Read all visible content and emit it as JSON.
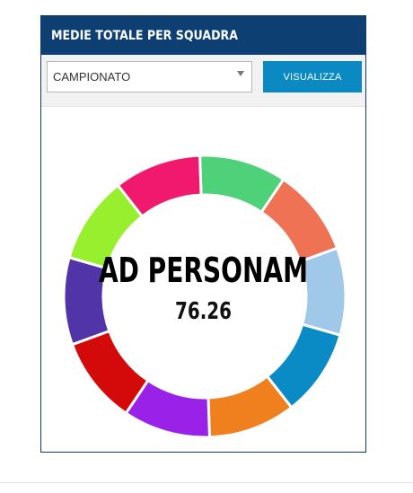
{
  "header": {
    "title": "MEDIE TOTALE PER SQUADRA"
  },
  "controls": {
    "select_value": "CAMPIONATO",
    "button_label": "VISUALIZZA"
  },
  "chart": {
    "center_label": "AD PERSONAM",
    "center_value": "76.26",
    "segments": [
      {
        "color": "#4fd17a",
        "value": 1
      },
      {
        "color": "#f07254",
        "value": 1
      },
      {
        "color": "#a0c8e8",
        "value": 1
      },
      {
        "color": "#0a8bc6",
        "value": 1
      },
      {
        "color": "#f07f1e",
        "value": 1
      },
      {
        "color": "#9a22e8",
        "value": 1
      },
      {
        "color": "#d40a0a",
        "value": 1
      },
      {
        "color": "#5034a8",
        "value": 1
      },
      {
        "color": "#98ef2e",
        "value": 1
      },
      {
        "color": "#f0196e",
        "value": 1
      }
    ],
    "colors": {
      "header_bg": "#0e3f72",
      "button_bg": "#0a89c3"
    }
  }
}
